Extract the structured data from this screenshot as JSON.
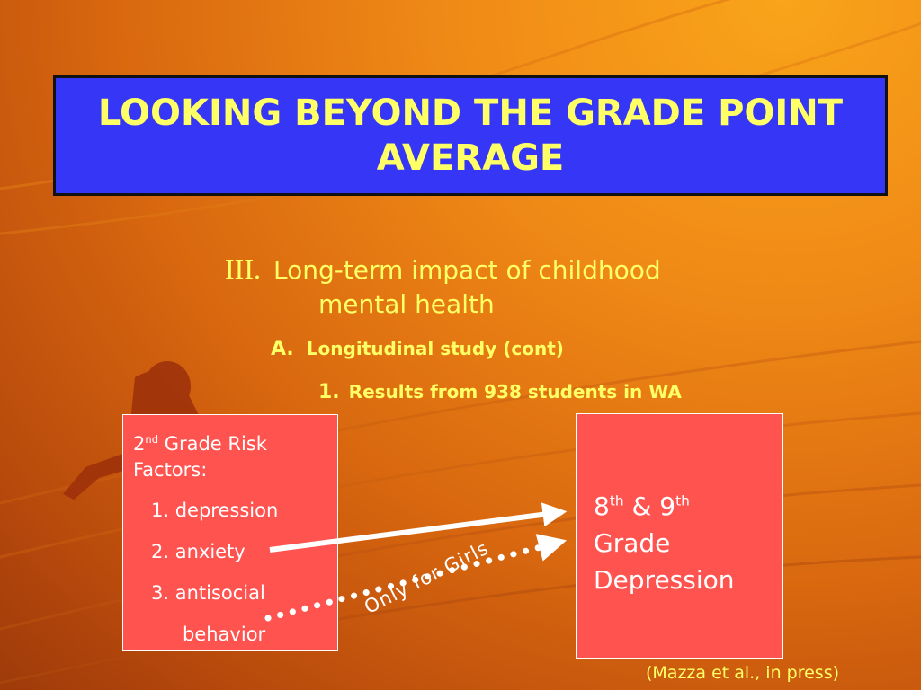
{
  "title": "LOOKING BEYOND THE GRADE POINT AVERAGE",
  "outline": {
    "level1": {
      "number": "III.",
      "text_line1": "Long-term impact of childhood",
      "text_line2": "mental health"
    },
    "levelA": {
      "number": "A.",
      "text": "Longitudinal study (cont)"
    },
    "level1b": {
      "number": "1.",
      "text": "Results from 938 students in WA"
    }
  },
  "left_box": {
    "heading_num": "2",
    "heading_sup": "nd",
    "heading_rest": " Grade Risk",
    "heading_line2": "Factors:",
    "items": [
      "1. depression",
      "2. anxiety",
      "3. antisocial",
      "behavior"
    ]
  },
  "right_box": {
    "num1": "8",
    "sup1": "th",
    "amp": " & ",
    "num2": "9",
    "sup2": "th",
    "line2": "Grade",
    "line3": "Depression"
  },
  "annotation": "Only for Girls",
  "citation": "(Mazza et al., in press)",
  "colors": {
    "title_bg": "#3636f6",
    "title_text": "#ffff66",
    "box_fill": "#ff5350",
    "background": "#f08a16"
  }
}
